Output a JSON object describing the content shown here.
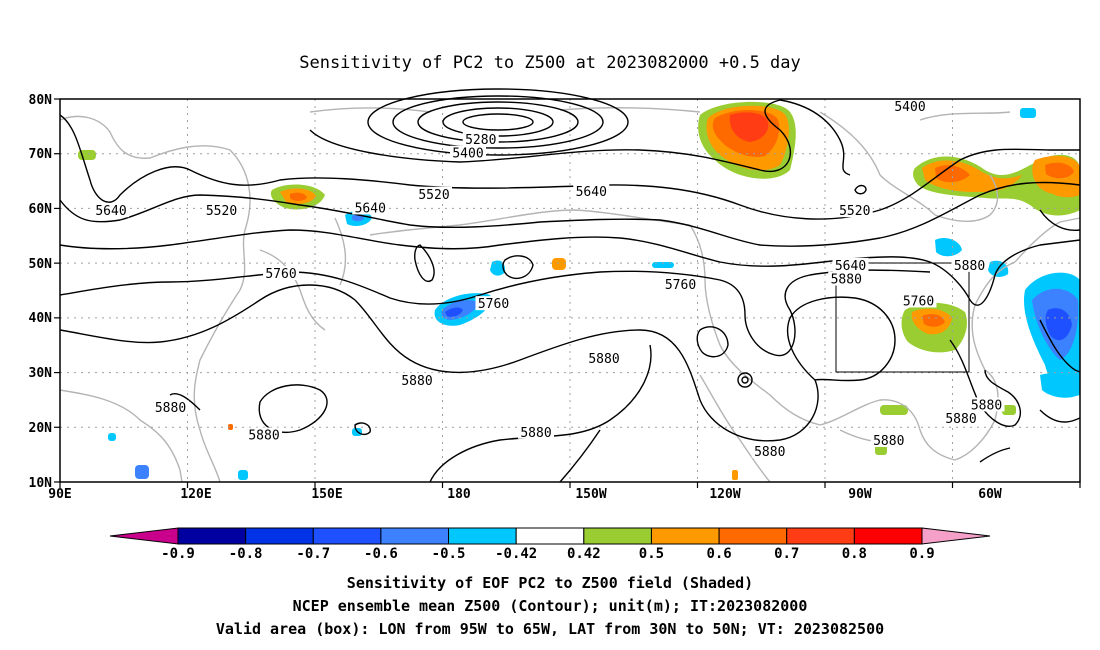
{
  "title": "Sensitivity of PC2 to Z500 at 2023082000 +0.5 day",
  "lat_labels": [
    "80N",
    "70N",
    "60N",
    "50N",
    "40N",
    "30N",
    "20N",
    "10N"
  ],
  "lon_labels": [
    "90E",
    "120E",
    "150E",
    "180",
    "150W",
    "120W",
    "90W",
    "60W"
  ],
  "contour_labels": [
    {
      "text": "5280",
      "lon": 189,
      "lat": 72.5
    },
    {
      "text": "5400",
      "lon": 186,
      "lat": 70
    },
    {
      "text": "5400",
      "lon": 290,
      "lat": 78.5
    },
    {
      "text": "5520",
      "lon": 178,
      "lat": 62.5
    },
    {
      "text": "5520",
      "lon": 128,
      "lat": 59.5
    },
    {
      "text": "5520",
      "lon": 277,
      "lat": 59.5
    },
    {
      "text": "5640",
      "lon": 102,
      "lat": 59.5
    },
    {
      "text": "5640",
      "lon": 163,
      "lat": 60
    },
    {
      "text": "5640",
      "lon": 215,
      "lat": 63
    },
    {
      "text": "5640",
      "lon": 276,
      "lat": 49.5
    },
    {
      "text": "5760",
      "lon": 142,
      "lat": 48
    },
    {
      "text": "5760",
      "lon": 192,
      "lat": 42.5
    },
    {
      "text": "5760",
      "lon": 236,
      "lat": 46
    },
    {
      "text": "5760",
      "lon": 292,
      "lat": 43
    },
    {
      "text": "5880",
      "lon": 275,
      "lat": 47
    },
    {
      "text": "5880",
      "lon": 304,
      "lat": 49.5
    },
    {
      "text": "5880",
      "lon": 218,
      "lat": 32.5
    },
    {
      "text": "5880",
      "lon": 174,
      "lat": 28.5
    },
    {
      "text": "5880",
      "lon": 116,
      "lat": 23.5
    },
    {
      "text": "5880",
      "lon": 138,
      "lat": 18.5
    },
    {
      "text": "5880",
      "lon": 202,
      "lat": 19
    },
    {
      "text": "5880",
      "lon": 257,
      "lat": 15.5
    },
    {
      "text": "5880",
      "lon": 285,
      "lat": 17.5
    },
    {
      "text": "5880",
      "lon": 302,
      "lat": 21.5
    },
    {
      "text": "5880",
      "lon": 308,
      "lat": 24
    }
  ],
  "colorbar": {
    "labels": [
      "-0.9",
      "-0.8",
      "-0.7",
      "-0.6",
      "-0.5",
      "-0.42",
      "0.42",
      "0.5",
      "0.6",
      "0.7",
      "0.8",
      "0.9"
    ],
    "colors": [
      "#c8008c",
      "#0000a0",
      "#0032e6",
      "#1e50ff",
      "#3c82ff",
      "#00c8ff",
      "#ffffff",
      "#9acd32",
      "#ff9900",
      "#ff6a00",
      "#ff3c14",
      "#ff0000",
      "#f5a0c8"
    ]
  },
  "valid_box": {
    "lon_min": -95,
    "lon_max": -65,
    "lat_min": 30,
    "lat_max": 50
  },
  "caption": [
    "Sensitivity of EOF PC2 to Z500 field (Shaded)",
    "NCEP ensemble mean Z500 (Contour); unit(m); IT:2023082000",
    "Valid area (box): LON from 95W to 65W, LAT from 30N to 50N; VT: 2023082500"
  ]
}
